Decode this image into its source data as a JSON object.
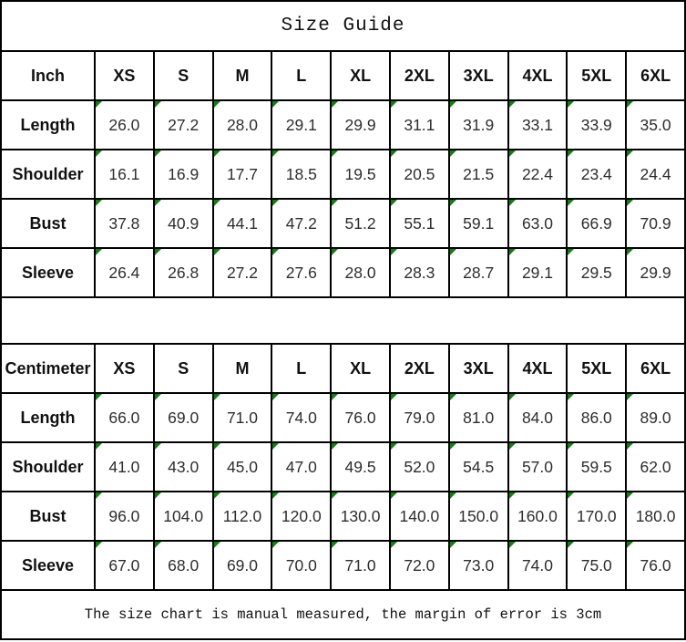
{
  "title": "Size Guide",
  "footer": {
    "note": "The size chart is manual measured, the margin of error is 3cm"
  },
  "colors": {
    "border": "#000000",
    "background": "#ffffff",
    "corner_flag": "#147d14",
    "text": "#111111"
  },
  "chart_data": [
    {
      "type": "table",
      "title": "Size Guide (Inch)",
      "unit": "Inch",
      "columns": [
        "XS",
        "S",
        "M",
        "L",
        "XL",
        "2XL",
        "3XL",
        "4XL",
        "5XL",
        "6XL"
      ],
      "rows": [
        {
          "label": "Length",
          "values": [
            "26.0",
            "27.2",
            "28.0",
            "29.1",
            "29.9",
            "31.1",
            "31.9",
            "33.1",
            "33.9",
            "35.0"
          ]
        },
        {
          "label": "Shoulder",
          "values": [
            "16.1",
            "16.9",
            "17.7",
            "18.5",
            "19.5",
            "20.5",
            "21.5",
            "22.4",
            "23.4",
            "24.4"
          ]
        },
        {
          "label": "Bust",
          "values": [
            "37.8",
            "40.9",
            "44.1",
            "47.2",
            "51.2",
            "55.1",
            "59.1",
            "63.0",
            "66.9",
            "70.9"
          ]
        },
        {
          "label": "Sleeve",
          "values": [
            "26.4",
            "26.8",
            "27.2",
            "27.6",
            "28.0",
            "28.3",
            "28.7",
            "29.1",
            "29.5",
            "29.9"
          ]
        }
      ]
    },
    {
      "type": "table",
      "title": "Size Guide (Centimeter)",
      "unit": "Centimeter",
      "columns": [
        "XS",
        "S",
        "M",
        "L",
        "XL",
        "2XL",
        "3XL",
        "4XL",
        "5XL",
        "6XL"
      ],
      "rows": [
        {
          "label": "Length",
          "values": [
            "66.0",
            "69.0",
            "71.0",
            "74.0",
            "76.0",
            "79.0",
            "81.0",
            "84.0",
            "86.0",
            "89.0"
          ]
        },
        {
          "label": "Shoulder",
          "values": [
            "41.0",
            "43.0",
            "45.0",
            "47.0",
            "49.5",
            "52.0",
            "54.5",
            "57.0",
            "59.5",
            "62.0"
          ]
        },
        {
          "label": "Bust",
          "values": [
            "96.0",
            "104.0",
            "112.0",
            "120.0",
            "130.0",
            "140.0",
            "150.0",
            "160.0",
            "170.0",
            "180.0"
          ]
        },
        {
          "label": "Sleeve",
          "values": [
            "67.0",
            "68.0",
            "69.0",
            "70.0",
            "71.0",
            "72.0",
            "73.0",
            "74.0",
            "75.0",
            "76.0"
          ]
        }
      ]
    }
  ]
}
